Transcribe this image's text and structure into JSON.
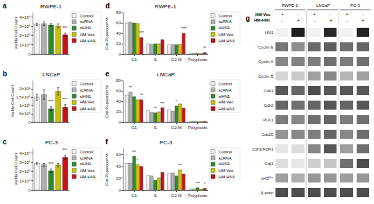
{
  "chart_data": [
    {
      "type": "bar",
      "panel_label": "a",
      "title": "RWPE-1",
      "y_label": "Viable Cell Count",
      "categories": [
        "Control",
        "scRNA",
        "siHN1",
        "HM-Vec",
        "HM-HN1"
      ],
      "values": [
        3200000,
        3300000,
        3150000,
        3050000,
        2100000
      ],
      "errors": [
        120000,
        180000,
        150000,
        220000,
        180000
      ],
      "significance": [
        null,
        null,
        null,
        null,
        "***"
      ],
      "colors": [
        "#f0f0f0",
        "#b0b0b0",
        "#2e8b2e",
        "#c8c000",
        "#cc1111"
      ],
      "ylim": [
        0,
        4500000
      ],
      "yticks": [
        0,
        {
          "value": 1000000,
          "label": "1×10⁶"
        },
        {
          "value": 2000000,
          "label": "2×10⁶"
        },
        {
          "value": 3000000,
          "label": "3×10⁶"
        },
        {
          "value": 4000000,
          "label": "4×10⁶"
        }
      ],
      "grid": false,
      "legend": "right",
      "tick_labels": "y"
    },
    {
      "type": "bar",
      "panel_label": "b",
      "title": "LNCaP",
      "y_label": "Viable Cell Count",
      "categories": [
        "Control",
        "scRNA",
        "siHN1",
        "HM-Vec",
        "HM-HN1"
      ],
      "values": [
        1500000,
        1650000,
        800000,
        1850000,
        900000
      ],
      "errors": [
        180000,
        280000,
        120000,
        220000,
        150000
      ],
      "significance": [
        null,
        null,
        "***",
        null,
        "***"
      ],
      "colors": [
        "#f0f0f0",
        "#b0b0b0",
        "#2e8b2e",
        "#c8c000",
        "#cc1111"
      ],
      "ylim": [
        0,
        2500000
      ],
      "yticks": [
        0,
        {
          "value": 500000,
          "label": "5×10⁵"
        },
        {
          "value": 1000000,
          "label": "1×10⁶"
        },
        {
          "value": 1500000,
          "label": "1.5×10⁶"
        },
        {
          "value": 2000000,
          "label": "2×10⁶"
        }
      ],
      "grid": false,
      "legend": "right",
      "tick_labels": "y"
    },
    {
      "type": "bar",
      "panel_label": "c",
      "title": "PC-3",
      "y_label": "Viable Cell Count",
      "categories": [
        "Control",
        "scRNA",
        "siHN1",
        "HM-Vec",
        "HM-HN1"
      ],
      "values": [
        2900000,
        2750000,
        2100000,
        2700000,
        3550000
      ],
      "errors": [
        100000,
        150000,
        180000,
        200000,
        220000
      ],
      "significance": [
        null,
        null,
        "***",
        null,
        "***"
      ],
      "colors": [
        "#f0f0f0",
        "#b0b0b0",
        "#2e8b2e",
        "#c8c000",
        "#cc1111"
      ],
      "ylim": [
        0,
        4500000
      ],
      "yticks": [
        0,
        {
          "value": 1000000,
          "label": "1×10⁶"
        },
        {
          "value": 2000000,
          "label": "2×10⁶"
        },
        {
          "value": 3000000,
          "label": "3×10⁶"
        },
        {
          "value": 4000000,
          "label": "4×10⁶"
        }
      ],
      "grid": false,
      "legend": "right",
      "tick_labels": "y"
    },
    {
      "type": "bar",
      "panel_label": "d",
      "title": "RWPE-1",
      "y_label": "Cell Population %",
      "categories": [
        "G1",
        "S",
        "G2-M",
        "Polyploids"
      ],
      "series": [
        {
          "name": "Control",
          "color": "#f0f0f0",
          "values": [
            60,
            20,
            18,
            2
          ],
          "significance": [
            null,
            null,
            null,
            null
          ]
        },
        {
          "name": "scRNA",
          "color": "#b0b0b0",
          "values": [
            61,
            19,
            18,
            1.5
          ],
          "significance": [
            null,
            null,
            null,
            null
          ]
        },
        {
          "name": "siHN1",
          "color": "#2e8b2e",
          "values": [
            60,
            20,
            18,
            1.5
          ],
          "significance": [
            null,
            null,
            null,
            null
          ]
        },
        {
          "name": "HM-Vec",
          "color": "#c8c000",
          "values": [
            59,
            20,
            19,
            1.5
          ],
          "significance": [
            null,
            null,
            null,
            null
          ]
        },
        {
          "name": "HM-HN1",
          "color": "#cc1111",
          "values": [
            32,
            28,
            40,
            3
          ],
          "significance": [
            "***",
            null,
            "****",
            "**"
          ]
        }
      ],
      "ylim": [
        0,
        80
      ],
      "yticks": [
        0,
        20,
        40,
        60,
        80
      ],
      "grid": false,
      "legend": "right"
    },
    {
      "type": "bar",
      "panel_label": "e",
      "title": "LNCaP",
      "y_label": "Cell Population %",
      "categories": [
        "G1",
        "S",
        "G2-M",
        "Polyploids"
      ],
      "series": [
        {
          "name": "Control",
          "color": "#f0f0f0",
          "values": [
            52,
            22,
            24,
            2
          ],
          "significance": [
            null,
            null,
            null,
            null
          ]
        },
        {
          "name": "scRNA",
          "color": "#b0b0b0",
          "values": [
            58,
            19,
            21,
            1.5
          ],
          "significance": [
            "**",
            null,
            null,
            null
          ]
        },
        {
          "name": "siHN1",
          "color": "#2e8b2e",
          "values": [
            49,
            18,
            31,
            1
          ],
          "significance": [
            null,
            "**",
            "*",
            null
          ]
        },
        {
          "name": "HM-Vec",
          "color": "#c8c000",
          "values": [
            43,
            20,
            35,
            1.5
          ],
          "significance": [
            null,
            null,
            null,
            null
          ]
        },
        {
          "name": "HM-HN1",
          "color": "#cc1111",
          "values": [
            43,
            28,
            27,
            1.5
          ],
          "significance": [
            "**",
            "***",
            null,
            null
          ]
        }
      ],
      "ylim": [
        0,
        80
      ],
      "yticks": [
        0,
        20,
        40,
        60,
        80
      ],
      "grid": false,
      "legend": "right"
    },
    {
      "type": "bar",
      "panel_label": "f",
      "title": "PC-3",
      "y_label": "Cell Population %",
      "categories": [
        "G1",
        "S",
        "G2-M",
        "Polyploids"
      ],
      "series": [
        {
          "name": "Control",
          "color": "#f0f0f0",
          "values": [
            45,
            25,
            28,
            2
          ],
          "significance": [
            null,
            null,
            null,
            null
          ]
        },
        {
          "name": "scRNA",
          "color": "#b0b0b0",
          "values": [
            45,
            24,
            29,
            2
          ],
          "significance": [
            null,
            null,
            null,
            null
          ]
        },
        {
          "name": "siHN1",
          "color": "#2e8b2e",
          "values": [
            57,
            17,
            24,
            4
          ],
          "significance": [
            "***",
            null,
            null,
            "***"
          ]
        },
        {
          "name": "HM-Vec",
          "color": "#c8c000",
          "values": [
            43,
            21,
            34,
            2
          ],
          "significance": [
            "*",
            null,
            "***",
            null
          ]
        },
        {
          "name": "HM-HN1",
          "color": "#cc1111",
          "values": [
            40,
            30,
            27,
            3
          ],
          "significance": [
            null,
            null,
            null,
            "*"
          ]
        }
      ],
      "ylim": [
        0,
        70
      ],
      "yticks": [
        0,
        20,
        40,
        60
      ],
      "grid": false,
      "legend": "right"
    },
    {
      "type": "heatmap",
      "panel_label": "g",
      "categories": [
        "HN1",
        "Cyclin E",
        "Cyclin A",
        "Cyclin B",
        "Cdk1",
        "Cdk2",
        "PLK1",
        "Cdc20",
        "Cdh1/FZR1",
        "Cdt1",
        "pH3ᴰˢˢ",
        "β-actin"
      ],
      "column_groups": [
        "RWPE-1",
        "LNCaP",
        "PC-3"
      ],
      "column_rows": [
        {
          "name": "HM-Vec",
          "labels": [
            "+",
            "-",
            "+",
            "-",
            "+",
            "-"
          ]
        },
        {
          "name": "HM-HN1",
          "labels": [
            "-",
            "+",
            "-",
            "+",
            "-",
            "+"
          ]
        }
      ],
      "cells": [
        [
          0.03,
          0.92,
          0.03,
          0.88,
          0.03,
          0.9
        ],
        [
          0.55,
          0.45,
          0.6,
          0.65,
          0.58,
          0.62
        ],
        [
          0.48,
          0.5,
          0.52,
          0.58,
          0.52,
          0.58
        ],
        [
          0.15,
          0.2,
          0.38,
          0.48,
          0.28,
          0.38
        ],
        [
          0.68,
          0.62,
          0.72,
          0.68,
          0.68,
          0.68
        ],
        [
          0.62,
          0.58,
          0.62,
          0.68,
          0.62,
          0.68
        ],
        [
          0.52,
          0.48,
          0.58,
          0.62,
          0.52,
          0.58
        ],
        [
          0.42,
          0.48,
          0.52,
          0.62,
          0.48,
          0.58
        ],
        [
          0.08,
          0.12,
          0.48,
          0.68,
          0.38,
          0.58
        ],
        [
          0.12,
          0.08,
          0.18,
          0.22,
          0.58,
          0.72
        ],
        [
          0.38,
          0.32,
          0.42,
          0.42,
          0.38,
          0.42
        ],
        [
          0.72,
          0.72,
          0.72,
          0.72,
          0.72,
          0.72
        ]
      ],
      "grid": false,
      "tick_labels": "y"
    }
  ]
}
